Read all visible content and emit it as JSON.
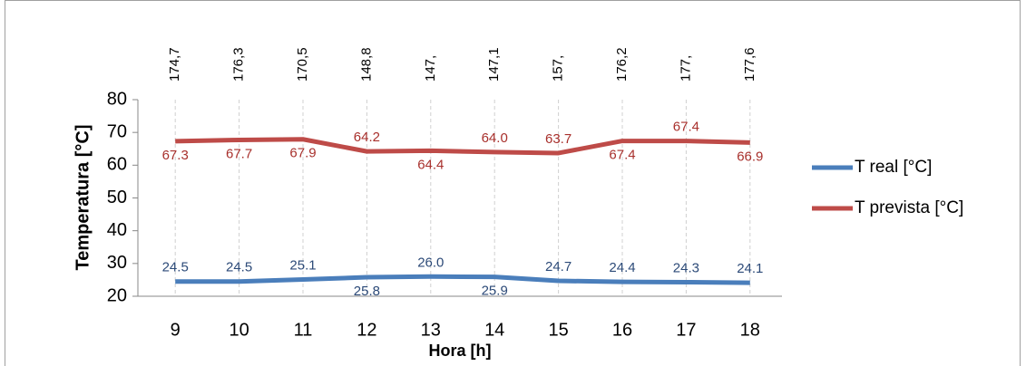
{
  "chart_data": {
    "type": "line",
    "x_label": "Hora [h]",
    "y_label": "Temperatura [°C]",
    "categories": [
      "9",
      "10",
      "11",
      "12",
      "13",
      "14",
      "15",
      "16",
      "17",
      "18"
    ],
    "annotations": [
      "174,7",
      "176,3",
      "170,5",
      "148,8",
      "147,",
      "147,1",
      "157,",
      "176,2",
      "177,",
      "177,6"
    ],
    "series": [
      {
        "name": "T real [°C]",
        "color": "#4a7ebb",
        "label_color": "#2c4a78",
        "values": [
          24.5,
          24.5,
          25.1,
          25.8,
          26.0,
          25.9,
          24.7,
          24.4,
          24.3,
          24.1
        ],
        "value_labels": [
          "24.5",
          "24.5",
          "25.1",
          "25.8",
          "26.0",
          "25.9",
          "24.7",
          "24.4",
          "24.3",
          "24.1"
        ]
      },
      {
        "name": "T prevista [°C]",
        "color": "#be4b48",
        "label_color": "#a8302c",
        "values": [
          67.3,
          67.7,
          67.9,
          64.2,
          64.4,
          64.0,
          63.7,
          67.4,
          67.4,
          66.9
        ],
        "value_labels": [
          "67.3",
          "67.7",
          "67.9",
          "64.2",
          "64.4",
          "64.0",
          "63.7",
          "67.4",
          "67.4",
          "66.9"
        ]
      }
    ],
    "ylim": [
      20,
      80
    ],
    "yticks": [
      20,
      30,
      40,
      50,
      60,
      70,
      80
    ],
    "grid": "x",
    "legend": "right"
  }
}
